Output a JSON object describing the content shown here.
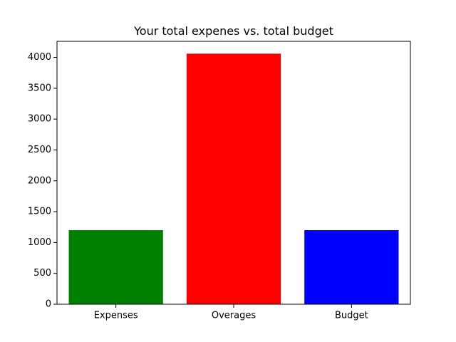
{
  "chart_data": {
    "type": "bar",
    "title": "Your total expenes vs. total budget",
    "xlabel": "",
    "ylabel": "",
    "categories": [
      "Expenses",
      "Overages",
      "Budget"
    ],
    "values": [
      1200,
      4060,
      1200
    ],
    "bar_colors": [
      "#008000",
      "#ff0000",
      "#0000ff"
    ],
    "ylim": [
      0,
      4260
    ],
    "yticks": [
      0,
      500,
      1000,
      1500,
      2000,
      2500,
      3000,
      3500,
      4000
    ],
    "grid": false,
    "legend": "none"
  }
}
